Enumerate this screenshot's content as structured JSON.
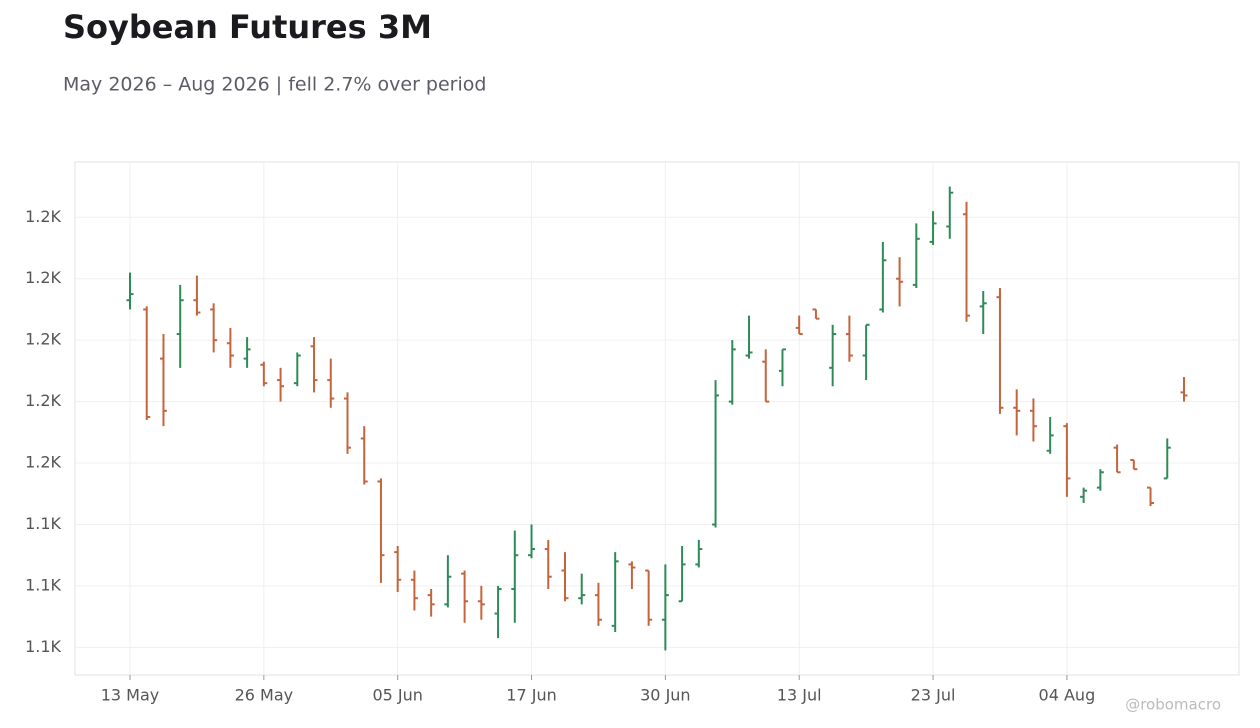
{
  "chart_data": {
    "type": "ohlc",
    "title": "Soybean Futures 3M",
    "subtitle": "May 2026 – Aug 2026 | fell 2.7% over period",
    "watermark": "@robomacro",
    "categories": [
      "13 May",
      null,
      null,
      null,
      null,
      null,
      null,
      null,
      "26 May",
      null,
      null,
      null,
      null,
      null,
      null,
      null,
      "05 Jun",
      null,
      null,
      null,
      null,
      null,
      null,
      null,
      "17 Jun",
      null,
      null,
      null,
      null,
      null,
      null,
      null,
      "30 Jun",
      null,
      null,
      null,
      null,
      null,
      null,
      null,
      "13 Jul",
      null,
      null,
      null,
      null,
      null,
      null,
      null,
      "23 Jul",
      null,
      null,
      null,
      null,
      null,
      null,
      null,
      "04 Aug",
      null,
      null,
      null,
      null,
      null,
      null,
      null
    ],
    "open": [
      1213,
      1210,
      1194,
      1202,
      1213,
      1210,
      1199,
      1194,
      1192,
      1187,
      1186,
      1198,
      1187,
      1181,
      1168,
      1154,
      1131,
      1122,
      1117,
      1114,
      1124,
      1115,
      1111,
      1119,
      1130,
      1132,
      1125,
      1116,
      1117,
      1107,
      1127,
      1125,
      1109,
      1115,
      1127,
      1140,
      1180,
      1195,
      1193,
      1190,
      1204,
      1210,
      1191,
      1202,
      1195,
      1210,
      1220,
      1218,
      1232,
      1237,
      1241,
      1211,
      1214,
      1178,
      1177,
      1164,
      1172,
      1149,
      1152,
      1165,
      1161,
      1152,
      1155,
      1183
    ],
    "high": [
      1222,
      1211,
      1202,
      1218,
      1221,
      1212,
      1204,
      1201,
      1193,
      1191,
      1196,
      1201,
      1194,
      1183,
      1172,
      1155,
      1133,
      1125,
      1119,
      1130,
      1125,
      1120,
      1120,
      1138,
      1140,
      1135,
      1131,
      1124,
      1121,
      1131,
      1128,
      1125,
      1127,
      1133,
      1135,
      1187,
      1200,
      1208,
      1197,
      1197,
      1208,
      1210,
      1205,
      1208,
      1205,
      1232,
      1227,
      1238,
      1242,
      1250,
      1245,
      1216,
      1217,
      1184,
      1181,
      1175,
      1173,
      1152,
      1158,
      1166,
      1161,
      1152,
      1168,
      1188
    ],
    "low": [
      1210,
      1174,
      1172,
      1191,
      1208,
      1196,
      1191,
      1191,
      1185,
      1180,
      1185,
      1183,
      1178,
      1163,
      1153,
      1121,
      1118,
      1112,
      1110,
      1113,
      1108,
      1109,
      1103,
      1108,
      1129,
      1119,
      1115,
      1114,
      1107,
      1105,
      1119,
      1107,
      1099,
      1115,
      1126,
      1139,
      1179,
      1194,
      1180,
      1185,
      1202,
      1207,
      1185,
      1193,
      1187,
      1209,
      1211,
      1217,
      1231,
      1233,
      1206,
      1202,
      1176,
      1169,
      1167,
      1163,
      1149,
      1147,
      1151,
      1157,
      1158,
      1146,
      1155,
      1180
    ],
    "close": [
      1215,
      1175,
      1177,
      1213,
      1209,
      1200,
      1195,
      1197,
      1186,
      1185,
      1195,
      1187,
      1181,
      1165,
      1154,
      1130,
      1122,
      1116,
      1114,
      1123,
      1115,
      1114,
      1119,
      1130,
      1132,
      1123,
      1116,
      1117,
      1109,
      1128,
      1126,
      1109,
      1117,
      1127,
      1132,
      1182,
      1197,
      1196,
      1180,
      1197,
      1202,
      1207,
      1202,
      1195,
      1205,
      1226,
      1219,
      1233,
      1238,
      1248,
      1208,
      1212,
      1178,
      1177,
      1172,
      1169,
      1155,
      1151,
      1157,
      1157,
      1158,
      1147,
      1165,
      1182
    ],
    "up_color": "#2e8b57",
    "down_color": "#c4643d",
    "ylim": [
      1091,
      1258
    ],
    "yticks": [
      {
        "value": 1100,
        "label": "1.1K"
      },
      {
        "value": 1120,
        "label": "1.1K"
      },
      {
        "value": 1140,
        "label": "1.1K"
      },
      {
        "value": 1160,
        "label": "1.2K"
      },
      {
        "value": 1180,
        "label": "1.2K"
      },
      {
        "value": 1200,
        "label": "1.2K"
      },
      {
        "value": 1220,
        "label": "1.2K"
      },
      {
        "value": 1240,
        "label": "1.2K"
      }
    ],
    "grid": true
  }
}
